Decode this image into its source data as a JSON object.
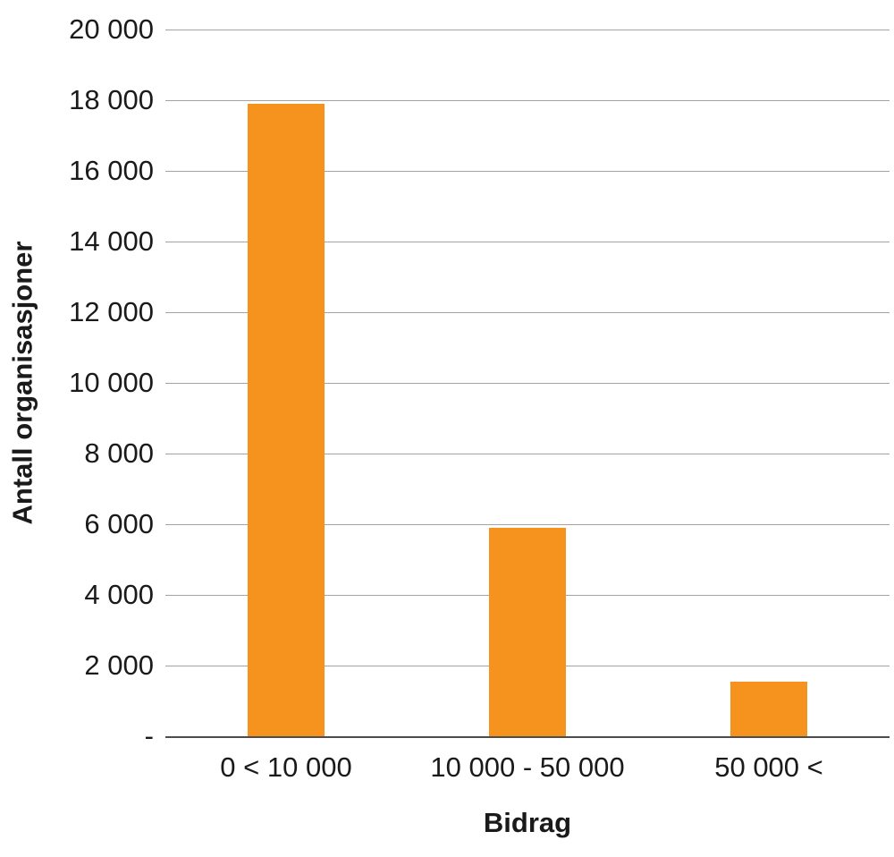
{
  "chart_data": {
    "type": "bar",
    "categories": [
      "0 < 10 000",
      "10 000 - 50 000",
      "50 000 <"
    ],
    "values": [
      17900,
      5900,
      1550
    ],
    "title": "",
    "xlabel": "Bidrag",
    "ylabel": "Antall organisasjoner",
    "ylim": [
      0,
      20000
    ],
    "ytick_step": 2000,
    "ytick_labels": [
      "-",
      "2 000",
      "4 000",
      "6 000",
      "8 000",
      "10 000",
      "12 000",
      "14 000",
      "16 000",
      "18 000",
      "20 000"
    ],
    "grid": true,
    "legend_position": "none",
    "bar_color": "#F6921E",
    "gridline_color": "#A3A3A3",
    "axis_line_color": "#4D4D4D",
    "text_color": "#1A1A1A"
  }
}
